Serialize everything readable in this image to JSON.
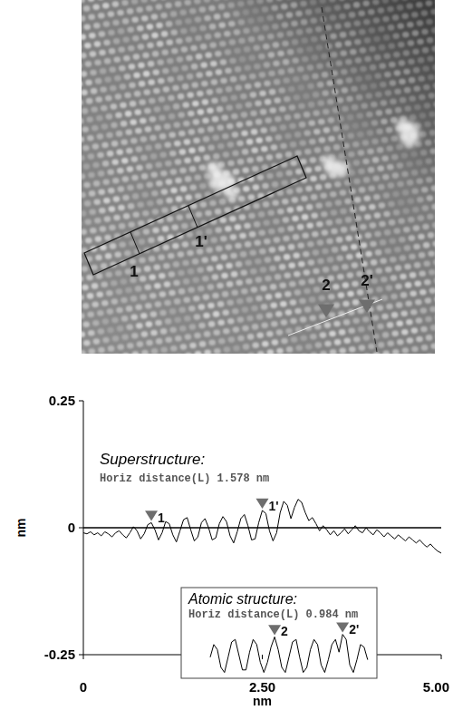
{
  "image": {
    "labels": [
      {
        "text": "1"
      },
      {
        "text": "1'"
      },
      {
        "text": "2"
      },
      {
        "text": "2'"
      }
    ]
  },
  "chart_data": {
    "type": "line",
    "xlabel": "nm",
    "ylabel": "nm",
    "xlim": [
      0,
      5
    ],
    "ylim": [
      -0.25,
      0.25
    ],
    "xticks": [
      0,
      {
        "value": 2.5,
        "label": "2.50"
      },
      {
        "value": 5,
        "label": "5.00"
      }
    ],
    "yticks": [
      {
        "value": -0.25,
        "label": "-0.25"
      },
      0,
      0.25
    ],
    "grid": false,
    "annotation": {
      "title": "Superstructure:",
      "text": "Horiz distance(L) 1.578 nm"
    },
    "series": [
      {
        "color": "#000000",
        "x": [
          0,
          0.05,
          0.1,
          0.15,
          0.2,
          0.25,
          0.3,
          0.35,
          0.4,
          0.45,
          0.5,
          0.55,
          0.6,
          0.65,
          0.7,
          0.75,
          0.8,
          0.85,
          0.9,
          0.95,
          1,
          1.05,
          1.1,
          1.15,
          1.2,
          1.25,
          1.3,
          1.35,
          1.4,
          1.45,
          1.5,
          1.55,
          1.6,
          1.65,
          1.7,
          1.75,
          1.8,
          1.85,
          1.9,
          1.95,
          2,
          2.05,
          2.1,
          2.15,
          2.2,
          2.25,
          2.3,
          2.35,
          2.4,
          2.45,
          2.5,
          2.55,
          2.6,
          2.65,
          2.7,
          2.75,
          2.8,
          2.85,
          2.9,
          2.95,
          3,
          3.05,
          3.1,
          3.15,
          3.2,
          3.25,
          3.3,
          3.35,
          3.4,
          3.45,
          3.5,
          3.55,
          3.6,
          3.65,
          3.7,
          3.75,
          3.8,
          3.85,
          3.9,
          3.95,
          4,
          4.05,
          4.1,
          4.15,
          4.2,
          4.25,
          4.3,
          4.35,
          4.4,
          4.45,
          4.5,
          4.55,
          4.6,
          4.65,
          4.7,
          4.75,
          4.8,
          4.85,
          4.9,
          4.95,
          5
        ],
        "values": [
          -0.01,
          -0.012,
          -0.008,
          -0.014,
          -0.01,
          -0.016,
          -0.008,
          -0.012,
          -0.018,
          -0.01,
          -0.006,
          -0.014,
          -0.02,
          -0.01,
          0.002,
          -0.006,
          -0.022,
          -0.012,
          0.006,
          0.01,
          -0.004,
          -0.024,
          -0.01,
          0.012,
          0.008,
          -0.014,
          -0.028,
          -0.006,
          0.016,
          0.02,
          -0.004,
          -0.026,
          -0.018,
          0.01,
          0.018,
          0.0,
          -0.024,
          -0.02,
          0.008,
          0.022,
          0.012,
          -0.016,
          -0.03,
          -0.008,
          0.018,
          0.026,
          0.004,
          -0.024,
          -0.022,
          0.01,
          0.034,
          0.028,
          -0.006,
          -0.026,
          -0.01,
          0.03,
          0.052,
          0.044,
          0.018,
          0.04,
          0.056,
          0.05,
          0.03,
          0.014,
          0.02,
          0.008,
          -0.006,
          0.004,
          -0.004,
          -0.014,
          -0.006,
          -0.016,
          -0.01,
          -0.002,
          -0.012,
          -0.004,
          0.004,
          -0.006,
          -0.01,
          0.0,
          -0.008,
          -0.014,
          -0.004,
          -0.01,
          -0.018,
          -0.01,
          -0.016,
          -0.022,
          -0.014,
          -0.02,
          -0.026,
          -0.018,
          -0.024,
          -0.03,
          -0.024,
          -0.032,
          -0.038,
          -0.032,
          -0.04,
          -0.046,
          -0.05
        ]
      }
    ],
    "markers": [
      {
        "label": "1",
        "x": 0.95,
        "y": 0.01
      },
      {
        "label": "1'",
        "x": 2.5,
        "y": 0.034
      }
    ],
    "inset": {
      "title": "Atomic structure:",
      "text": "Horiz distance(L) 0.984 nm",
      "color": "#000000",
      "x": [
        0,
        0.05,
        0.1,
        0.15,
        0.2,
        0.25,
        0.3,
        0.35,
        0.4,
        0.45,
        0.5,
        0.55,
        0.6,
        0.65,
        0.7,
        0.75,
        0.8,
        0.85,
        0.9,
        0.95,
        1,
        1.05,
        1.1,
        1.15,
        1.2,
        1.25,
        1.3,
        1.35,
        1.4,
        1.45,
        1.5,
        1.55,
        1.6,
        1.65,
        1.7,
        1.75,
        1.8,
        1.85,
        1.9,
        1.95,
        2,
        2.05,
        2.1,
        2.15,
        2.2
      ],
      "values": [
        -0.005,
        0.02,
        0.01,
        -0.025,
        -0.035,
        -0.005,
        0.025,
        0.03,
        0.0,
        -0.03,
        -0.03,
        0.005,
        0.03,
        0.02,
        -0.015,
        -0.035,
        -0.015,
        0.015,
        0.035,
        0.01,
        -0.025,
        -0.035,
        -0.005,
        0.025,
        0.03,
        -0.005,
        -0.035,
        -0.025,
        0.01,
        0.03,
        0.02,
        -0.02,
        -0.035,
        -0.01,
        0.02,
        0.03,
        0.005,
        0.04,
        0.03,
        -0.02,
        -0.035,
        -0.01,
        0.02,
        0.015,
        -0.01
      ],
      "markers": [
        {
          "label": "2",
          "x": 0.9,
          "y": 0.035
        },
        {
          "label": "2'",
          "x": 1.85,
          "y": 0.04
        }
      ]
    }
  }
}
